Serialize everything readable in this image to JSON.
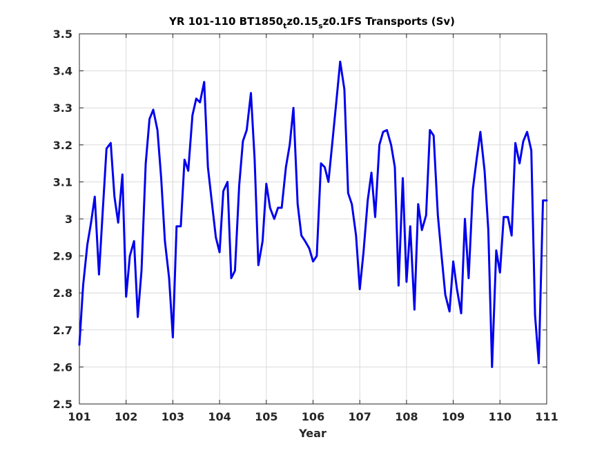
{
  "chart_data": {
    "type": "line",
    "title_parts": [
      {
        "text": "YR 101-110 BT1850",
        "sub": false
      },
      {
        "text": "t",
        "sub": true
      },
      {
        "text": "z0.15",
        "sub": false
      },
      {
        "text": "s",
        "sub": true
      },
      {
        "text": "z0.1FS Transports (Sv)",
        "sub": false
      }
    ],
    "xlabel": "Year",
    "ylabel": "",
    "xlim": [
      101,
      111
    ],
    "ylim": [
      2.5,
      3.5
    ],
    "xticks": [
      101,
      102,
      103,
      104,
      105,
      106,
      107,
      108,
      109,
      110,
      111
    ],
    "xtick_labels": [
      "101",
      "102",
      "103",
      "104",
      "105",
      "106",
      "107",
      "108",
      "109",
      "110",
      "111"
    ],
    "yticks": [
      2.5,
      2.6,
      2.7,
      2.8,
      2.9,
      3.0,
      3.1,
      3.2,
      3.3,
      3.4,
      3.5
    ],
    "ytick_labels": [
      "2.5",
      "2.6",
      "2.7",
      "2.8",
      "2.9",
      "3",
      "3.1",
      "3.2",
      "3.3",
      "3.4",
      "3.5"
    ],
    "grid": true,
    "legend": "none",
    "line_color": "#0000ee",
    "grid_color": "#d9d9d9",
    "axis_color": "#262626",
    "series": [
      {
        "x": [
          101.0,
          101.08,
          101.17,
          101.25,
          101.33,
          101.42,
          101.5,
          101.58,
          101.67,
          101.75,
          101.83,
          101.92,
          102.0,
          102.08,
          102.17,
          102.25,
          102.33,
          102.42,
          102.5,
          102.58,
          102.67,
          102.75,
          102.83,
          102.92,
          103.0,
          103.08,
          103.17,
          103.25,
          103.33,
          103.42,
          103.5,
          103.58,
          103.67,
          103.75,
          103.83,
          103.92,
          104.0,
          104.08,
          104.17,
          104.25,
          104.33,
          104.42,
          104.5,
          104.58,
          104.67,
          104.75,
          104.83,
          104.92,
          105.0,
          105.08,
          105.17,
          105.25,
          105.33,
          105.42,
          105.5,
          105.58,
          105.67,
          105.75,
          105.83,
          105.92,
          106.0,
          106.08,
          106.17,
          106.25,
          106.33,
          106.42,
          106.5,
          106.58,
          106.67,
          106.75,
          106.83,
          106.92,
          107.0,
          107.08,
          107.17,
          107.25,
          107.33,
          107.42,
          107.5,
          107.58,
          107.67,
          107.75,
          107.83,
          107.92,
          108.0,
          108.08,
          108.17,
          108.25,
          108.33,
          108.42,
          108.5,
          108.58,
          108.67,
          108.75,
          108.83,
          108.92,
          109.0,
          109.08,
          109.17,
          109.25,
          109.33,
          109.42,
          109.5,
          109.58,
          109.67,
          109.75,
          109.83,
          109.92,
          110.0,
          110.08,
          110.17,
          110.25,
          110.33,
          110.42,
          110.5,
          110.58,
          110.67,
          110.75,
          110.83,
          110.92,
          111.0
        ],
        "values": [
          2.66,
          2.82,
          2.93,
          2.99,
          3.06,
          2.85,
          3.02,
          3.19,
          3.205,
          3.06,
          2.99,
          3.12,
          2.79,
          2.9,
          2.94,
          2.735,
          2.86,
          3.15,
          3.27,
          3.295,
          3.24,
          3.11,
          2.94,
          2.84,
          2.68,
          2.98,
          2.98,
          3.16,
          3.13,
          3.28,
          3.325,
          3.315,
          3.37,
          3.14,
          3.05,
          2.95,
          2.91,
          3.075,
          3.1,
          2.84,
          2.86,
          3.09,
          3.21,
          3.24,
          3.34,
          3.16,
          2.875,
          2.94,
          3.095,
          3.03,
          3.0,
          3.03,
          3.03,
          3.14,
          3.2,
          3.3,
          3.04,
          2.955,
          2.94,
          2.92,
          2.885,
          2.9,
          3.15,
          3.14,
          3.1,
          3.215,
          3.32,
          3.425,
          3.35,
          3.07,
          3.04,
          2.955,
          2.81,
          2.91,
          3.05,
          3.125,
          3.005,
          3.2,
          3.235,
          3.24,
          3.2,
          3.14,
          2.82,
          3.11,
          2.83,
          2.98,
          2.755,
          3.04,
          2.97,
          3.01,
          3.24,
          3.225,
          3.01,
          2.9,
          2.795,
          2.75,
          2.885,
          2.81,
          2.745,
          3.0,
          2.84,
          3.08,
          3.16,
          3.235,
          3.13,
          2.97,
          2.6,
          2.915,
          2.855,
          3.005,
          3.005,
          2.955,
          3.205,
          3.15,
          3.21,
          3.235,
          3.185,
          2.74,
          2.61,
          3.05,
          3.05
        ]
      }
    ]
  }
}
